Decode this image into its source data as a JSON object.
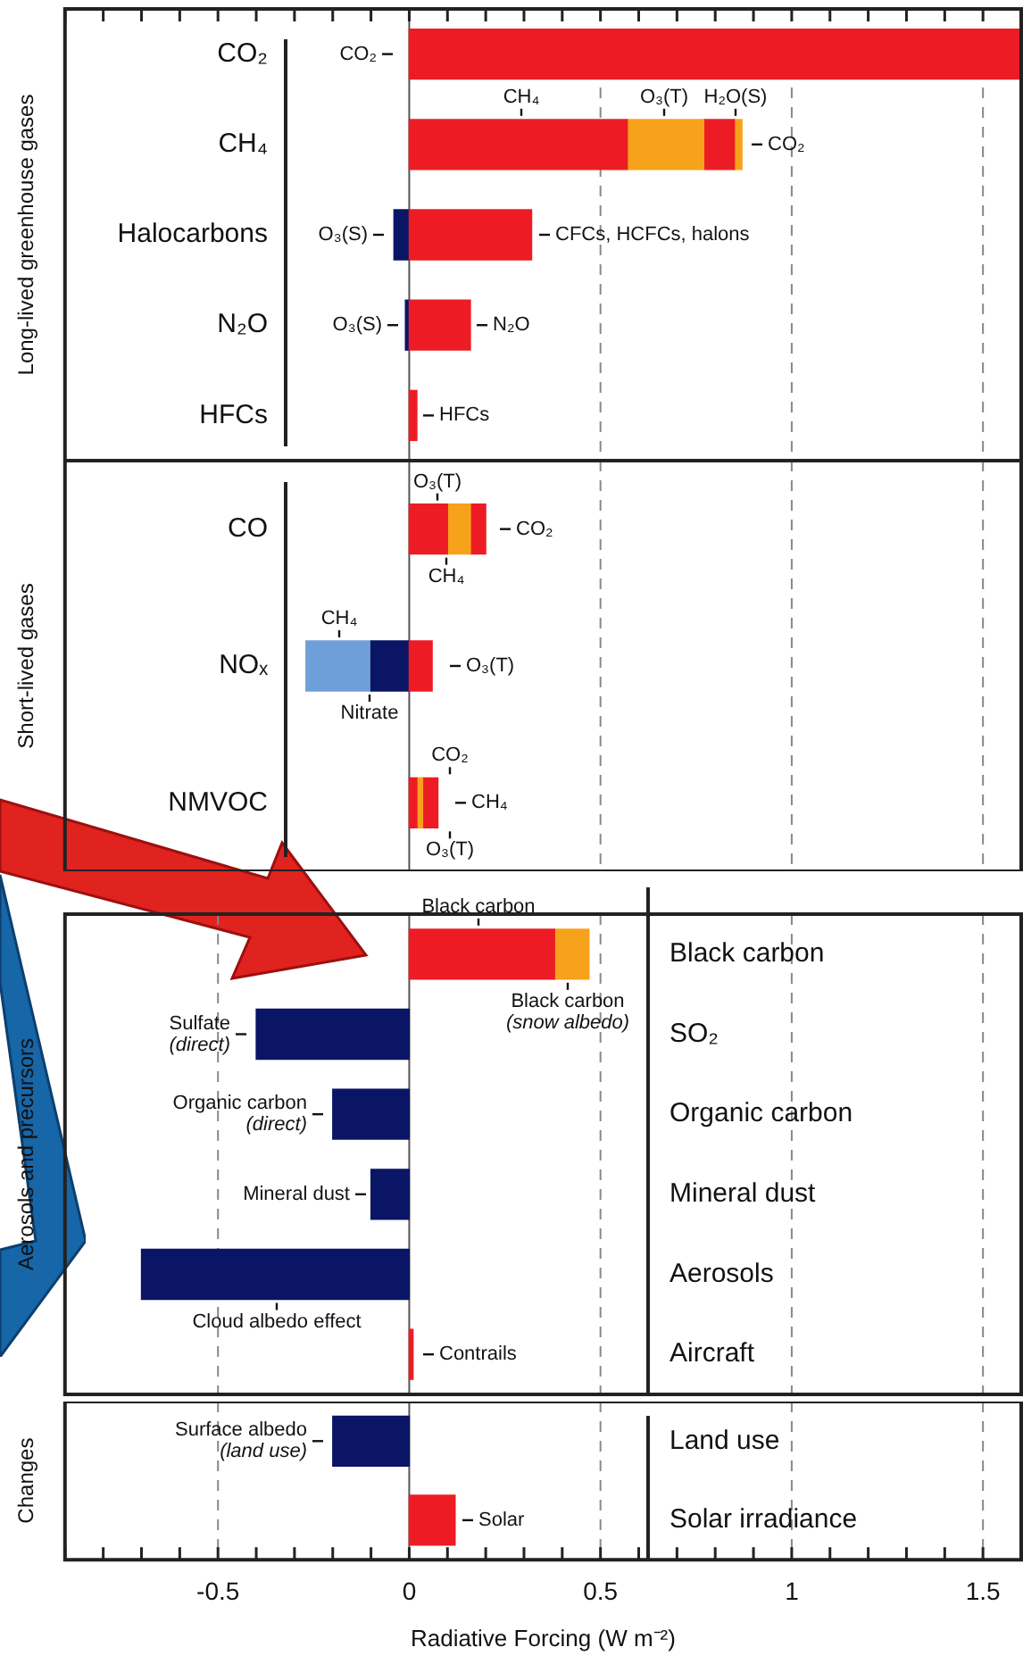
{
  "chart_data": [
    {
      "type": "bar",
      "orientation": "horizontal",
      "stacked": true,
      "ylabel": "Long-lived greenhouse gases",
      "categories": [
        "CO₂",
        "CH₄",
        "Halocarbons",
        "N₂O",
        "HFCs"
      ],
      "series": [
        {
          "color": "#ed1c24",
          "values": [
            1.6,
            0.57,
            0.32,
            0.16,
            0.02
          ]
        },
        {
          "color": "#f7a21b",
          "values": [
            null,
            0.2,
            null,
            null,
            null
          ]
        },
        {
          "color": "#ed1c24",
          "values": [
            null,
            0.08,
            null,
            null,
            null
          ]
        },
        {
          "color": "#f7a21b",
          "values": [
            null,
            0.02,
            null,
            null,
            null
          ]
        },
        {
          "color": "#0a1565",
          "values": [
            null,
            null,
            -0.04,
            -0.01,
            null
          ]
        }
      ],
      "xlim": [
        -0.9,
        1.6
      ],
      "xticks": [
        {
          "value": -0.9,
          "label": null
        },
        {
          "value": -0.8,
          "label": null
        },
        {
          "value": -0.7,
          "label": null
        },
        {
          "value": -0.6,
          "label": null
        },
        {
          "value": -0.5,
          "label": null
        },
        {
          "value": -0.4,
          "label": null
        },
        {
          "value": -0.3,
          "label": null
        },
        {
          "value": -0.2,
          "label": null
        },
        {
          "value": -0.1,
          "label": null
        },
        0,
        {
          "value": 0.1,
          "label": null
        },
        {
          "value": 0.2,
          "label": null
        },
        {
          "value": 0.3,
          "label": null
        },
        {
          "value": 0.4,
          "label": null
        },
        0.5,
        {
          "value": 0.6,
          "label": null
        },
        {
          "value": 0.7,
          "label": null
        },
        {
          "value": 0.8,
          "label": null
        },
        {
          "value": 0.9,
          "label": null
        },
        1,
        {
          "value": 1.1,
          "label": null
        },
        {
          "value": 1.2,
          "label": null
        },
        {
          "value": 1.3,
          "label": null
        },
        {
          "value": 1.4,
          "label": null
        },
        1.5
      ],
      "grid": "x",
      "tick_labels": "y",
      "annotations": [
        "CO₂",
        "CH₄",
        "O₃(T)",
        "H₂O(S)",
        "CO₂",
        "O₃(S)",
        "CFCs, HCFCs, halons",
        "O₃(S)",
        "N₂O",
        "HFCs"
      ]
    },
    {
      "type": "bar",
      "orientation": "horizontal",
      "stacked": true,
      "ylabel": "Short-lived gases",
      "categories": [
        "CO",
        "NOₓ",
        "NMVOC"
      ],
      "series": [
        {
          "color": "#ed1c24",
          "values": [
            0.1,
            0.06,
            0.02
          ]
        },
        {
          "color": "#f7a21b",
          "values": [
            0.06,
            null,
            0.015
          ]
        },
        {
          "color": "#ed1c24",
          "values": [
            0.04,
            null,
            0.04
          ]
        },
        {
          "color": "#0a1565",
          "values": [
            null,
            -0.1,
            null
          ]
        },
        {
          "color": "#6f9fd8",
          "values": [
            null,
            -0.17,
            null
          ]
        }
      ],
      "xlim": [
        -0.9,
        1.6
      ],
      "xticks": [
        0,
        0.5,
        1,
        1.5
      ],
      "grid": "x",
      "tick_labels": "y",
      "annotations": [
        "O₃(T)",
        "CH₄",
        "CO₂",
        "CH₄",
        "Nitrate",
        "O₃(T)",
        "CO₂",
        "O₃(T)",
        "CH₄"
      ]
    },
    {
      "type": "bar",
      "orientation": "horizontal",
      "stacked": true,
      "ylabel": "Aerosols and precursors",
      "categories": [
        "Black carbon",
        "SO₂",
        "Organic carbon",
        "Mineral dust",
        "Aerosols",
        "Aircraft"
      ],
      "series": [
        {
          "color": "#ed1c24",
          "values": [
            0.38,
            null,
            null,
            null,
            null,
            0.01
          ]
        },
        {
          "color": "#f7a21b",
          "values": [
            0.09,
            null,
            null,
            null,
            null,
            null
          ]
        },
        {
          "color": "#0a1565",
          "values": [
            null,
            -0.4,
            -0.2,
            -0.1,
            -0.7,
            null
          ]
        }
      ],
      "xlim": [
        -0.9,
        1.6
      ],
      "xticks": [
        -0.5,
        0,
        0.5,
        1,
        1.5
      ],
      "grid": "x",
      "tick_labels": "y",
      "annotations": [
        "Black carbon",
        "Black carbon\n(snow albedo)",
        "Sulfate\n(direct)",
        "Organic carbon\n(direct)",
        "Mineral dust",
        "Cloud albedo effect",
        "Contrails"
      ]
    },
    {
      "type": "bar",
      "orientation": "horizontal",
      "stacked": true,
      "ylabel": "Changes",
      "xlabel": "Radiative Forcing (W m⁻²)",
      "categories": [
        "Land use",
        "Solar irradiance"
      ],
      "series": [
        {
          "color": "#ed1c24",
          "values": [
            null,
            0.12
          ]
        },
        {
          "color": "#0a1565",
          "values": [
            -0.2,
            null
          ]
        }
      ],
      "xlim": [
        -0.9,
        1.6
      ],
      "xticks": [
        {
          "value": -0.9,
          "label": null
        },
        {
          "value": -0.8,
          "label": null
        },
        {
          "value": -0.7,
          "label": null
        },
        {
          "value": -0.6,
          "label": null
        },
        -0.5,
        {
          "value": -0.4,
          "label": null
        },
        {
          "value": -0.3,
          "label": null
        },
        {
          "value": -0.2,
          "label": null
        },
        {
          "value": -0.1,
          "label": null
        },
        0,
        {
          "value": 0.1,
          "label": null
        },
        {
          "value": 0.2,
          "label": null
        },
        {
          "value": 0.3,
          "label": null
        },
        {
          "value": 0.4,
          "label": null
        },
        0.5,
        {
          "value": 0.6,
          "label": null
        },
        {
          "value": 0.7,
          "label": null
        },
        {
          "value": 0.8,
          "label": null
        },
        {
          "value": 0.9,
          "label": null
        },
        1,
        {
          "value": 1.1,
          "label": null
        },
        {
          "value": 1.2,
          "label": null
        },
        {
          "value": 1.3,
          "label": null
        },
        {
          "value": 1.4,
          "label": null
        },
        1.5
      ],
      "grid": "x",
      "annotations": [
        "Surface albedo\n(land use)",
        "Solar"
      ]
    }
  ]
}
